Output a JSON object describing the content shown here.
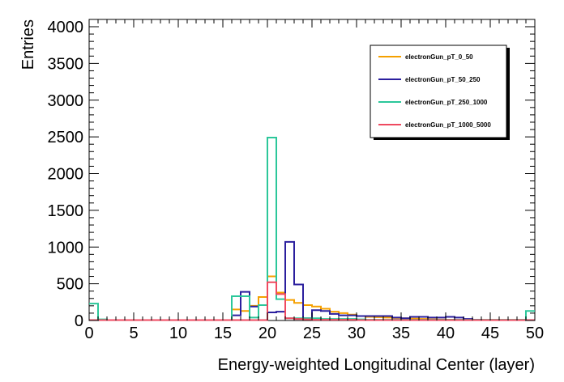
{
  "chart_data": {
    "type": "histogram-step",
    "title": "",
    "xlabel": "Energy-weighted Longitudinal Center (layer)",
    "ylabel": "Entries",
    "xlim": [
      0,
      50
    ],
    "ylim": [
      0,
      4000
    ],
    "xticks": [
      0,
      5,
      10,
      15,
      20,
      25,
      30,
      35,
      40,
      45,
      50
    ],
    "yticks": [
      0,
      500,
      1000,
      1500,
      2000,
      2500,
      3000,
      3500,
      4000
    ],
    "grid": false,
    "legend_position": "top-right",
    "bin_edges": [
      0,
      1,
      2,
      3,
      4,
      5,
      6,
      7,
      8,
      9,
      10,
      11,
      12,
      13,
      14,
      15,
      16,
      17,
      18,
      19,
      20,
      21,
      22,
      23,
      24,
      25,
      26,
      27,
      28,
      29,
      30,
      31,
      32,
      33,
      34,
      35,
      36,
      37,
      38,
      39,
      40,
      41,
      42,
      43,
      44,
      45,
      46,
      47,
      48,
      49,
      50
    ],
    "series": [
      {
        "name": "electronGun_pT_0_50",
        "color": "#f5a000",
        "values": [
          5,
          5,
          5,
          5,
          5,
          5,
          5,
          5,
          5,
          5,
          5,
          5,
          5,
          5,
          5,
          5,
          150,
          130,
          200,
          320,
          600,
          380,
          280,
          240,
          210,
          190,
          160,
          120,
          100,
          80,
          60,
          50,
          45,
          40,
          35,
          30,
          25,
          20,
          15,
          12,
          10,
          8,
          5,
          5,
          5,
          5,
          5,
          5,
          5,
          5
        ]
      },
      {
        "name": "electronGun_pT_50_250",
        "color": "#2b1f9e",
        "values": [
          5,
          5,
          5,
          5,
          5,
          5,
          5,
          5,
          5,
          5,
          5,
          5,
          5,
          5,
          5,
          5,
          70,
          390,
          190,
          210,
          110,
          120,
          1070,
          490,
          30,
          140,
          130,
          90,
          70,
          70,
          60,
          60,
          60,
          60,
          40,
          30,
          50,
          50,
          40,
          40,
          50,
          40,
          20,
          10,
          5,
          5,
          5,
          5,
          5,
          5
        ]
      },
      {
        "name": "electronGun_pT_250_1000",
        "color": "#2cc79a",
        "values": [
          230,
          15,
          5,
          5,
          5,
          5,
          5,
          5,
          5,
          5,
          5,
          5,
          5,
          5,
          5,
          5,
          330,
          330,
          40,
          210,
          2490,
          290,
          30,
          30,
          30,
          30,
          20,
          20,
          20,
          20,
          15,
          10,
          10,
          10,
          10,
          10,
          10,
          10,
          10,
          10,
          10,
          10,
          10,
          10,
          10,
          10,
          10,
          10,
          10,
          130
        ]
      },
      {
        "name": "electronGun_pT_1000_5000",
        "color": "#ef4a60",
        "values": [
          5,
          5,
          5,
          5,
          5,
          5,
          5,
          5,
          5,
          5,
          5,
          5,
          5,
          5,
          5,
          5,
          5,
          5,
          5,
          5,
          520,
          360,
          30,
          20,
          15,
          10,
          10,
          10,
          10,
          10,
          5,
          5,
          5,
          5,
          5,
          5,
          5,
          5,
          5,
          5,
          5,
          5,
          5,
          5,
          5,
          5,
          5,
          5,
          5,
          5
        ]
      }
    ]
  }
}
